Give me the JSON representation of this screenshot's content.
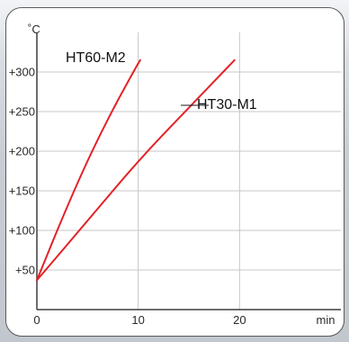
{
  "chart_data": {
    "type": "line",
    "y_unit": "˚C",
    "x_unit": "min",
    "x_ticks": [
      0,
      10,
      20
    ],
    "y_ticks": [
      {
        "value": 50,
        "label": "+50"
      },
      {
        "value": 100,
        "label": "+100"
      },
      {
        "value": 150,
        "label": "+150"
      },
      {
        "value": 200,
        "label": "+200"
      },
      {
        "value": 250,
        "label": "+250"
      },
      {
        "value": 300,
        "label": "+300"
      }
    ],
    "xlim": [
      0,
      30
    ],
    "ylim": [
      0,
      350
    ],
    "grid": true,
    "line_color": "#e32227",
    "series": [
      {
        "name": "HT60-M2",
        "points": [
          [
            0,
            37
          ],
          [
            2,
            100
          ],
          [
            4,
            160
          ],
          [
            6,
            215
          ],
          [
            8,
            265
          ],
          [
            10,
            311
          ],
          [
            10.2,
            315
          ]
        ]
      },
      {
        "name": "HT30-M1",
        "points": [
          [
            0,
            37
          ],
          [
            5,
            112
          ],
          [
            10,
            188
          ],
          [
            15,
            255
          ],
          [
            19.5,
            315
          ]
        ]
      }
    ]
  }
}
